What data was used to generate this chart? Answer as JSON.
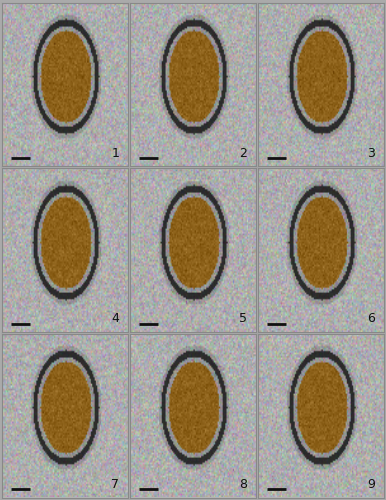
{
  "nrows": 3,
  "ncols": 3,
  "panel_numbers": [
    "1",
    "2",
    "3",
    "4",
    "5",
    "6",
    "7",
    "8",
    "9"
  ],
  "bg_color": "#b0b0b0",
  "border_color": "#888888",
  "number_color": "#111111",
  "scalebar_color": "#111111",
  "fig_bg": "#aaaaaa",
  "number_fontsize": 9,
  "figsize": [
    3.86,
    5.0
  ],
  "dpi": 100,
  "grid_linewidth": 1.5,
  "grid_color": "#888888"
}
